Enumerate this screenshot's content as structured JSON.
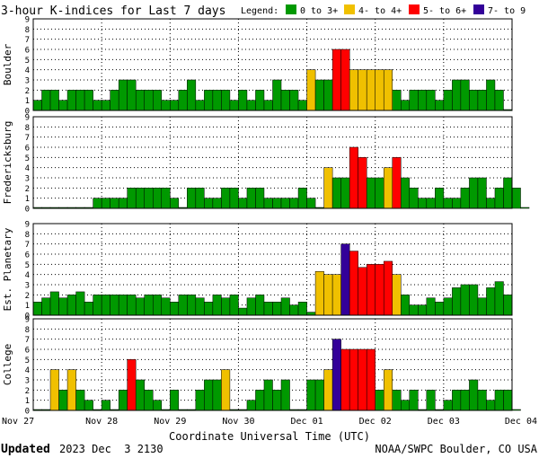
{
  "title": "3-hour K-indices for Last 7 days",
  "legend": {
    "label": "Legend:",
    "items": [
      {
        "text": "0 to 3+",
        "color": "#009900"
      },
      {
        "text": "4- to 4+",
        "color": "#f0c000"
      },
      {
        "text": "5- to 6+",
        "color": "#ff0000"
      },
      {
        "text": "7- to 9",
        "color": "#330099"
      }
    ]
  },
  "xlabel": "Coordinate Universal Time (UTC)",
  "footer": {
    "updated_label": "Updated",
    "updated_value": "2023 Dec  3 2130",
    "source": "NOAA/SWPC Boulder, CO USA"
  },
  "chart_data": {
    "type": "bar",
    "x_tick_labels": [
      "Nov 27",
      "Nov 28",
      "Nov 29",
      "Nov 30",
      "Dec 01",
      "Dec 02",
      "Dec 03",
      "Dec 04"
    ],
    "ylim": [
      0,
      9
    ],
    "y_ticks": [
      0,
      1,
      2,
      3,
      4,
      5,
      6,
      7,
      8,
      9
    ],
    "grid": true,
    "bins_per_day": 8,
    "series": [
      {
        "name": "Boulder",
        "values": [
          1,
          2,
          2,
          1,
          2,
          2,
          2,
          1,
          1,
          2,
          3,
          3,
          2,
          2,
          2,
          1,
          1,
          2,
          3,
          1,
          2,
          2,
          2,
          1,
          2,
          1,
          2,
          1,
          3,
          2,
          2,
          1,
          4,
          3,
          3,
          6,
          6,
          4,
          4,
          4,
          4,
          4,
          2,
          1,
          2,
          2,
          2,
          1,
          2,
          3,
          3,
          2,
          2,
          3,
          2,
          0
        ]
      },
      {
        "name": "Fredericksburg",
        "values": [
          0,
          0,
          0,
          0,
          0,
          0,
          0,
          1,
          1,
          1,
          1,
          2,
          2,
          2,
          2,
          2,
          1,
          0,
          2,
          2,
          1,
          1,
          2,
          2,
          1,
          2,
          2,
          1,
          1,
          1,
          1,
          2,
          1,
          0,
          4,
          3,
          3,
          6,
          5,
          3,
          3,
          4,
          5,
          3,
          2,
          1,
          1,
          2,
          1,
          1,
          2,
          3,
          3,
          1,
          2,
          3,
          2,
          0
        ]
      },
      {
        "name": "Est. Planetary",
        "values": [
          1.3,
          1.7,
          2.3,
          1.7,
          2,
          2.3,
          1.3,
          2,
          2,
          2,
          2,
          2,
          1.7,
          2,
          2,
          1.7,
          1.3,
          2,
          2,
          1.7,
          1.3,
          2,
          1.7,
          2,
          0.7,
          1.7,
          2,
          1.3,
          1.3,
          1.7,
          1,
          1.3,
          0.3,
          4.3,
          4,
          4,
          7,
          6.3,
          4.7,
          5,
          5,
          5.3,
          4,
          2,
          1,
          1,
          1.7,
          1.3,
          1.7,
          2.7,
          3,
          3,
          1.7,
          2.7,
          3.3,
          2
        ]
      },
      {
        "name": "College",
        "values": [
          0,
          0,
          4,
          2,
          4,
          2,
          1,
          0,
          1,
          0,
          2,
          5,
          3,
          2,
          1,
          0,
          2,
          0,
          0,
          2,
          3,
          3,
          4,
          0,
          0,
          1,
          2,
          3,
          2,
          3,
          0,
          0,
          3,
          3,
          4,
          7,
          6,
          6,
          6,
          6,
          2,
          4,
          2,
          1,
          2,
          0,
          2,
          0,
          1,
          2,
          2,
          3,
          2,
          1,
          2,
          2,
          0
        ]
      }
    ]
  }
}
